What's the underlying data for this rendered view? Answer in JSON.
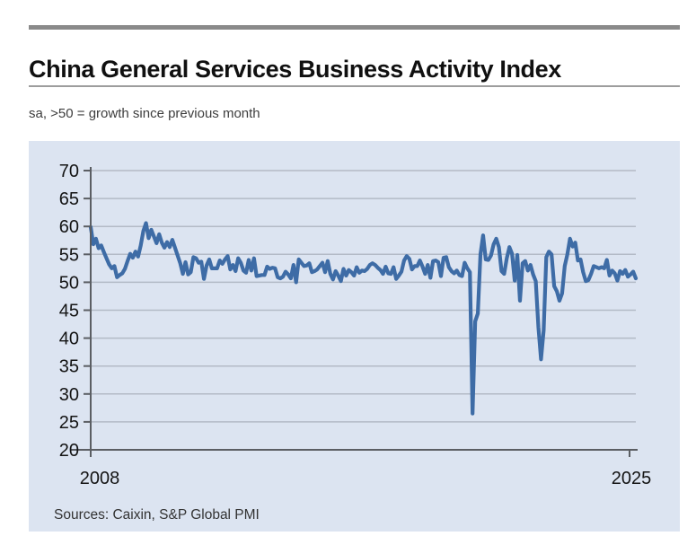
{
  "header": {
    "title": "China General Services Business Activity Index",
    "subtitle": "sa, >50 = growth since previous month"
  },
  "footer": {
    "sources": "Sources: Caixin, S&P Global PMI"
  },
  "colors": {
    "panel_bg": "#dce4f1",
    "line": "#3e6ca6",
    "grid": "#b3bac6",
    "axis": "#5b5e63",
    "tick_label": "#141414",
    "title_rule": "#8a8a8a"
  },
  "chart_data": {
    "type": "line",
    "title": "China General Services Business Activity Index",
    "subtitle": "sa, >50 = growth since previous month",
    "frequency": "monthly",
    "x_start": "2008-01",
    "x_end": "2025-04",
    "x_tick_labels": [
      "2008",
      "2025"
    ],
    "ylim": [
      20,
      70
    ],
    "y_ticks": [
      70,
      65,
      60,
      55,
      50,
      45,
      40,
      35,
      30,
      25,
      20
    ],
    "grid": true,
    "legend": "none",
    "series": [
      {
        "name": "China General Services Business Activity Index",
        "values": [
          59.9,
          56.8,
          57.8,
          56.1,
          56.6,
          55.4,
          54.3,
          53.2,
          52.5,
          52.9,
          50.9,
          51.3,
          51.6,
          52.4,
          53.8,
          55.1,
          54.4,
          55.5,
          54.6,
          56.6,
          59.2,
          60.6,
          57.9,
          59.4,
          58.2,
          57.0,
          58.6,
          57.1,
          56.2,
          57.2,
          56.3,
          57.6,
          56.2,
          54.8,
          53.4,
          51.5,
          53.6,
          51.4,
          51.8,
          54.5,
          54.3,
          53.5,
          53.7,
          50.6,
          53.0,
          54.1,
          52.5,
          52.5,
          52.5,
          53.9,
          53.3,
          54.1,
          54.7,
          52.3,
          53.1,
          52.0,
          54.3,
          53.5,
          52.1,
          51.7,
          54.0,
          52.1,
          54.3,
          51.1,
          51.2,
          51.3,
          51.3,
          52.8,
          52.4,
          52.6,
          52.5,
          50.9,
          50.7,
          51.0,
          51.9,
          51.4,
          50.7,
          53.1,
          50.0,
          54.1,
          53.5,
          52.9,
          53.0,
          53.4,
          51.8,
          52.0,
          52.3,
          52.9,
          53.5,
          51.8,
          53.8,
          51.5,
          50.5,
          52.0,
          51.2,
          50.2,
          52.4,
          51.2,
          52.2,
          51.8,
          51.2,
          52.7,
          51.7,
          52.1,
          52.0,
          52.4,
          53.1,
          53.4,
          53.1,
          52.6,
          52.2,
          51.5,
          52.8,
          51.6,
          51.5,
          52.7,
          50.6,
          51.2,
          51.9,
          53.9,
          54.7,
          54.2,
          52.3,
          52.9,
          52.9,
          53.9,
          52.8,
          51.5,
          53.1,
          50.8,
          53.8,
          53.9,
          53.6,
          51.1,
          54.4,
          54.5,
          52.7,
          52.0,
          51.6,
          52.1,
          51.3,
          51.1,
          53.5,
          52.5,
          51.8,
          26.5,
          43.0,
          44.4,
          55.0,
          58.4,
          54.1,
          54.0,
          54.8,
          56.8,
          57.8,
          56.3,
          52.0,
          51.5,
          54.3,
          56.3,
          55.1,
          50.3,
          54.9,
          46.7,
          53.4,
          53.8,
          52.1,
          53.1,
          51.4,
          50.2,
          42.0,
          36.2,
          41.4,
          54.5,
          55.5,
          55.0,
          49.3,
          48.4,
          46.7,
          48.0,
          52.9,
          55.0,
          57.8,
          56.4,
          57.1,
          53.9,
          54.1,
          51.8,
          50.2,
          50.4,
          51.5,
          52.9,
          52.7,
          52.5,
          52.7,
          52.5,
          54.0,
          51.2,
          52.1,
          51.6,
          50.3,
          52.0,
          51.5,
          52.2,
          51.0,
          51.4,
          51.9,
          50.7
        ]
      }
    ]
  }
}
